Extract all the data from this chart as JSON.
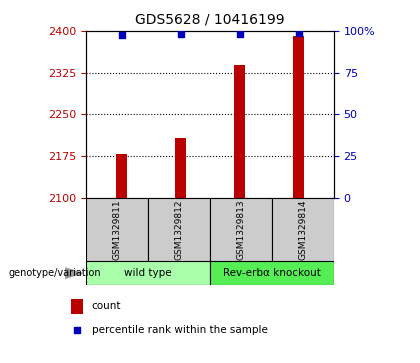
{
  "title": "GDS5628 / 10416199",
  "samples": [
    "GSM1329811",
    "GSM1329812",
    "GSM1329813",
    "GSM1329814"
  ],
  "counts": [
    2178,
    2207,
    2338,
    2390
  ],
  "percentiles": [
    97.5,
    98.0,
    98.0,
    99.0
  ],
  "ylim_left": [
    2100,
    2400
  ],
  "ylim_right": [
    0,
    100
  ],
  "yticks_left": [
    2100,
    2175,
    2250,
    2325,
    2400
  ],
  "yticks_right": [
    0,
    25,
    50,
    75,
    100
  ],
  "ytick_labels_right": [
    "0",
    "25",
    "50",
    "75",
    "100%"
  ],
  "bar_color": "#BB0000",
  "dot_color": "#0000BB",
  "groups": [
    {
      "label": "wild type",
      "samples": [
        0,
        1
      ],
      "color": "#AAFFAA"
    },
    {
      "label": "Rev-erbα knockout",
      "samples": [
        2,
        3
      ],
      "color": "#55EE55"
    }
  ],
  "group_label": "genotype/variation",
  "legend_count_label": "count",
  "legend_percentile_label": "percentile rank within the sample",
  "title_fontsize": 10,
  "tick_fontsize": 8,
  "bar_width": 0.18,
  "dot_size": 22,
  "grid_linestyle": "dotted",
  "grid_color": "#000000"
}
